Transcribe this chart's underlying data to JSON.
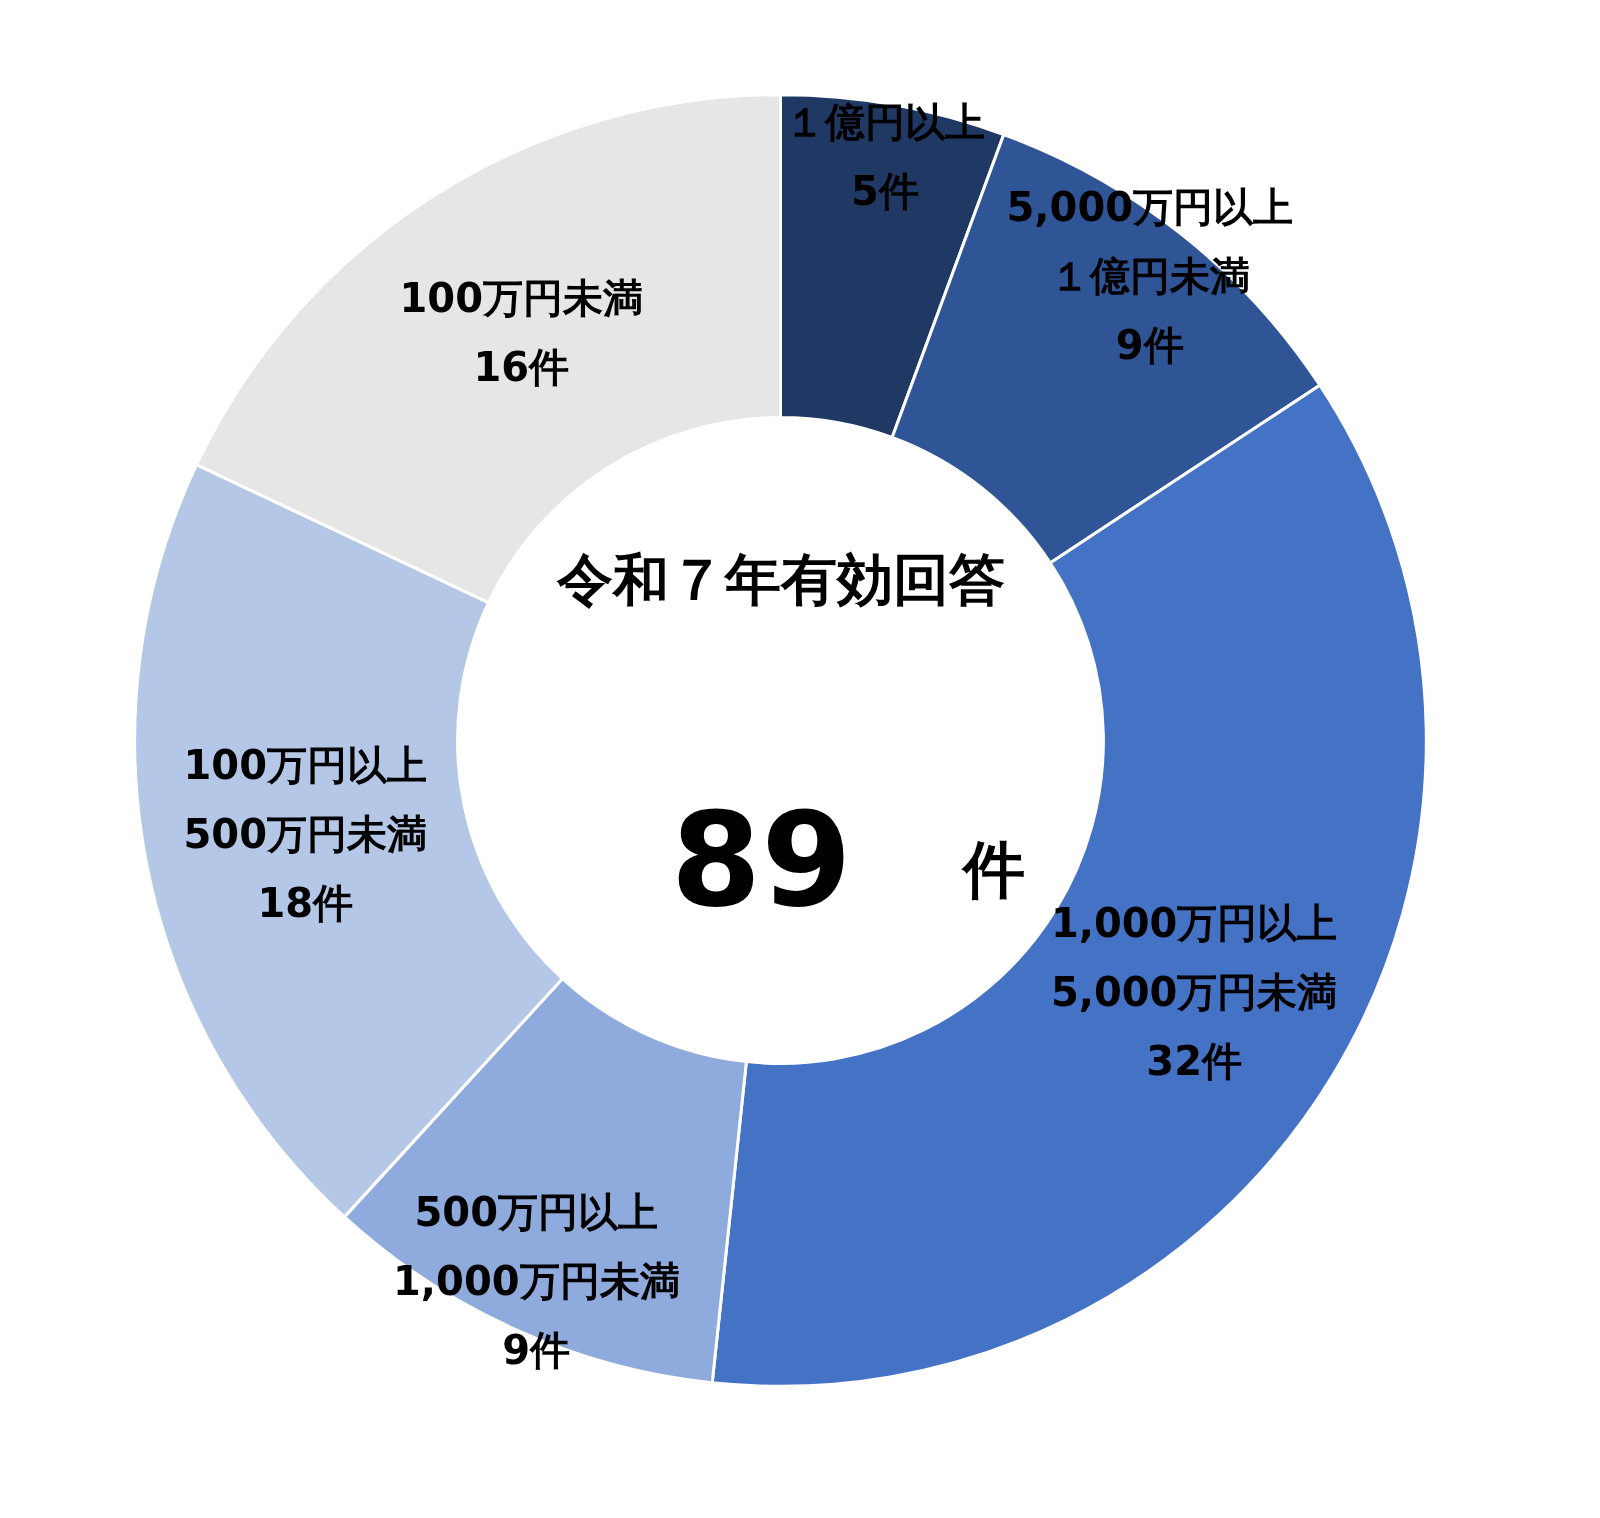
{
  "chart_data": {
    "type": "donut",
    "title": "令和７年有効回答",
    "annotations": [
      "89",
      "件"
    ],
    "categories": [
      "１億円以上",
      "5,000万円以上１億円未満",
      "1,000万円以上5,000万円未満",
      "500万円以上1,000万円未満",
      "100万円以上500万円未満",
      "100万円未満"
    ],
    "values": [
      5,
      9,
      32,
      9,
      18,
      16
    ],
    "value_labels": [
      "5件",
      "9件",
      "32件",
      "9件",
      "18件",
      "16件"
    ],
    "colors": [
      "#203864",
      "#2f5597",
      "#4472c4",
      "#8faadc",
      "#b4c7e7",
      "#e7e6e6"
    ]
  }
}
